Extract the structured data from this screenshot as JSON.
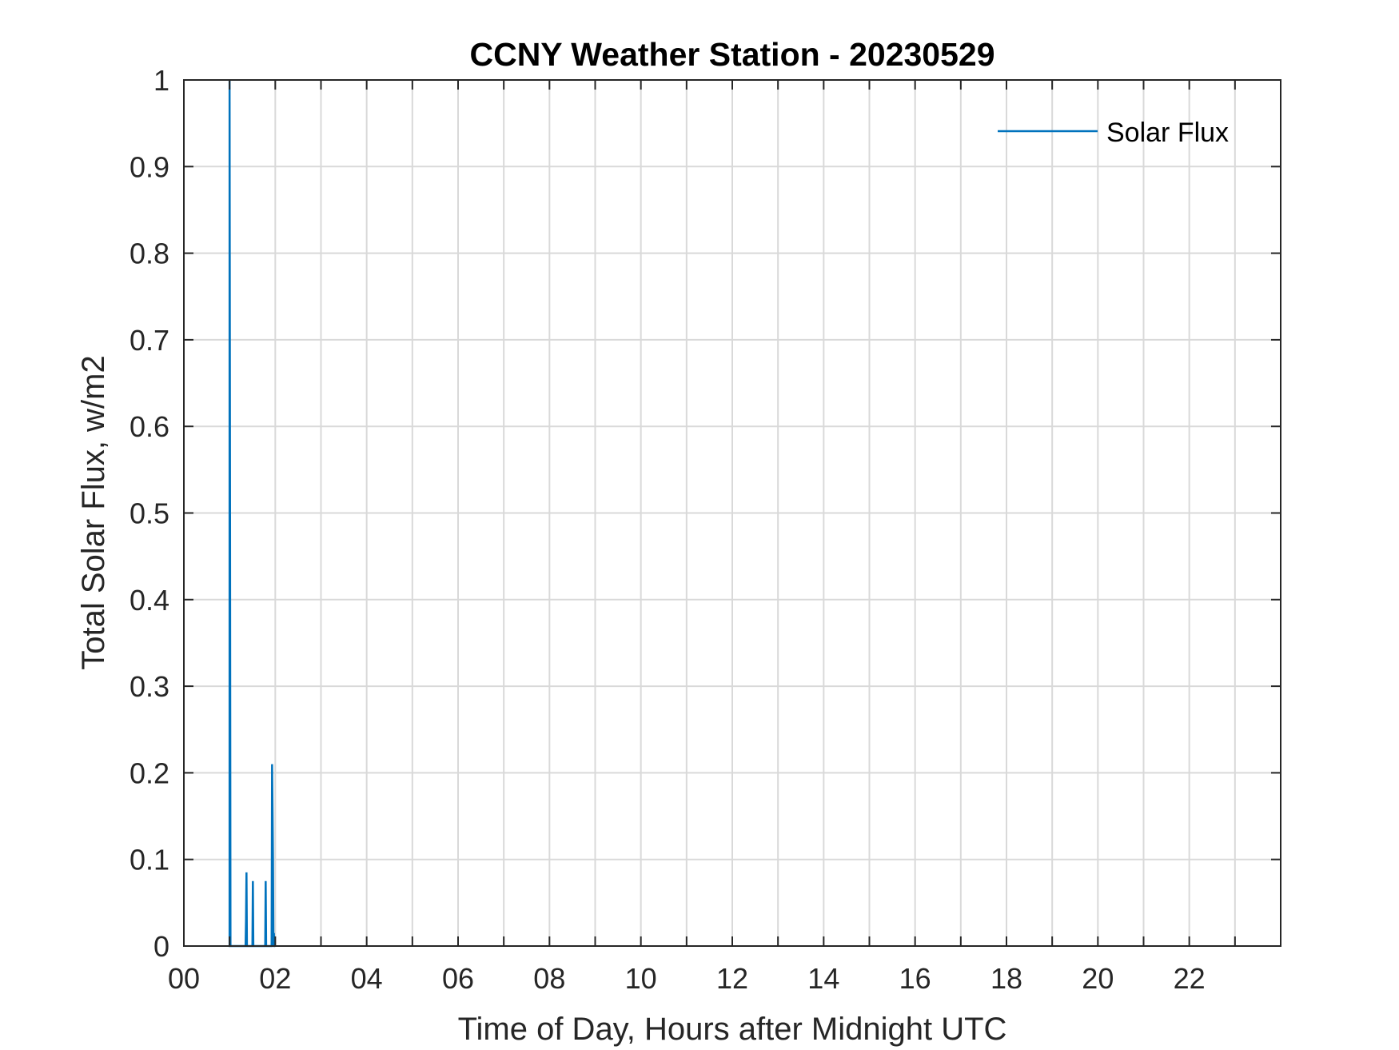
{
  "chart_data": {
    "type": "line",
    "title": "CCNY Weather Station - 20230529",
    "xlabel": "Time of Day, Hours after Midnight UTC",
    "ylabel": "Total Solar Flux, w/m2",
    "xlim": [
      0,
      24
    ],
    "ylim": [
      0,
      1
    ],
    "x_tick_values": [
      0,
      2,
      4,
      6,
      8,
      10,
      12,
      14,
      16,
      18,
      20,
      22
    ],
    "x_tick_labels": [
      "00",
      "02",
      "04",
      "06",
      "08",
      "10",
      "12",
      "14",
      "16",
      "18",
      "20",
      "22"
    ],
    "x_minor_grid_step": 1,
    "y_ticks": [
      0,
      0.1,
      0.2,
      0.3,
      0.4,
      0.5,
      0.6,
      0.7,
      0.8,
      0.9,
      1
    ],
    "y_tick_labels": [
      "0",
      "0.1",
      "0.2",
      "0.3",
      "0.4",
      "0.5",
      "0.6",
      "0.7",
      "0.8",
      "0.9",
      "1"
    ],
    "grid": true,
    "legend_position": "top-right",
    "color": "#0072BD",
    "series": [
      {
        "name": "Solar Flux",
        "x": [
          0.98,
          1.0,
          1.0,
          1.02,
          1.35,
          1.36,
          1.37,
          1.38,
          1.5,
          1.51,
          1.52,
          1.53,
          1.78,
          1.79,
          1.8,
          1.81,
          1.92,
          1.93,
          1.94,
          1.95,
          1.96,
          1.97,
          1.98,
          2.0
        ],
        "y": [
          0,
          0,
          1.0,
          0,
          0,
          0.03,
          0.085,
          0,
          0,
          0.075,
          0,
          0,
          0,
          0.075,
          0,
          0,
          0,
          0.21,
          0.16,
          0.1,
          0,
          0.015,
          0,
          0
        ]
      }
    ]
  }
}
